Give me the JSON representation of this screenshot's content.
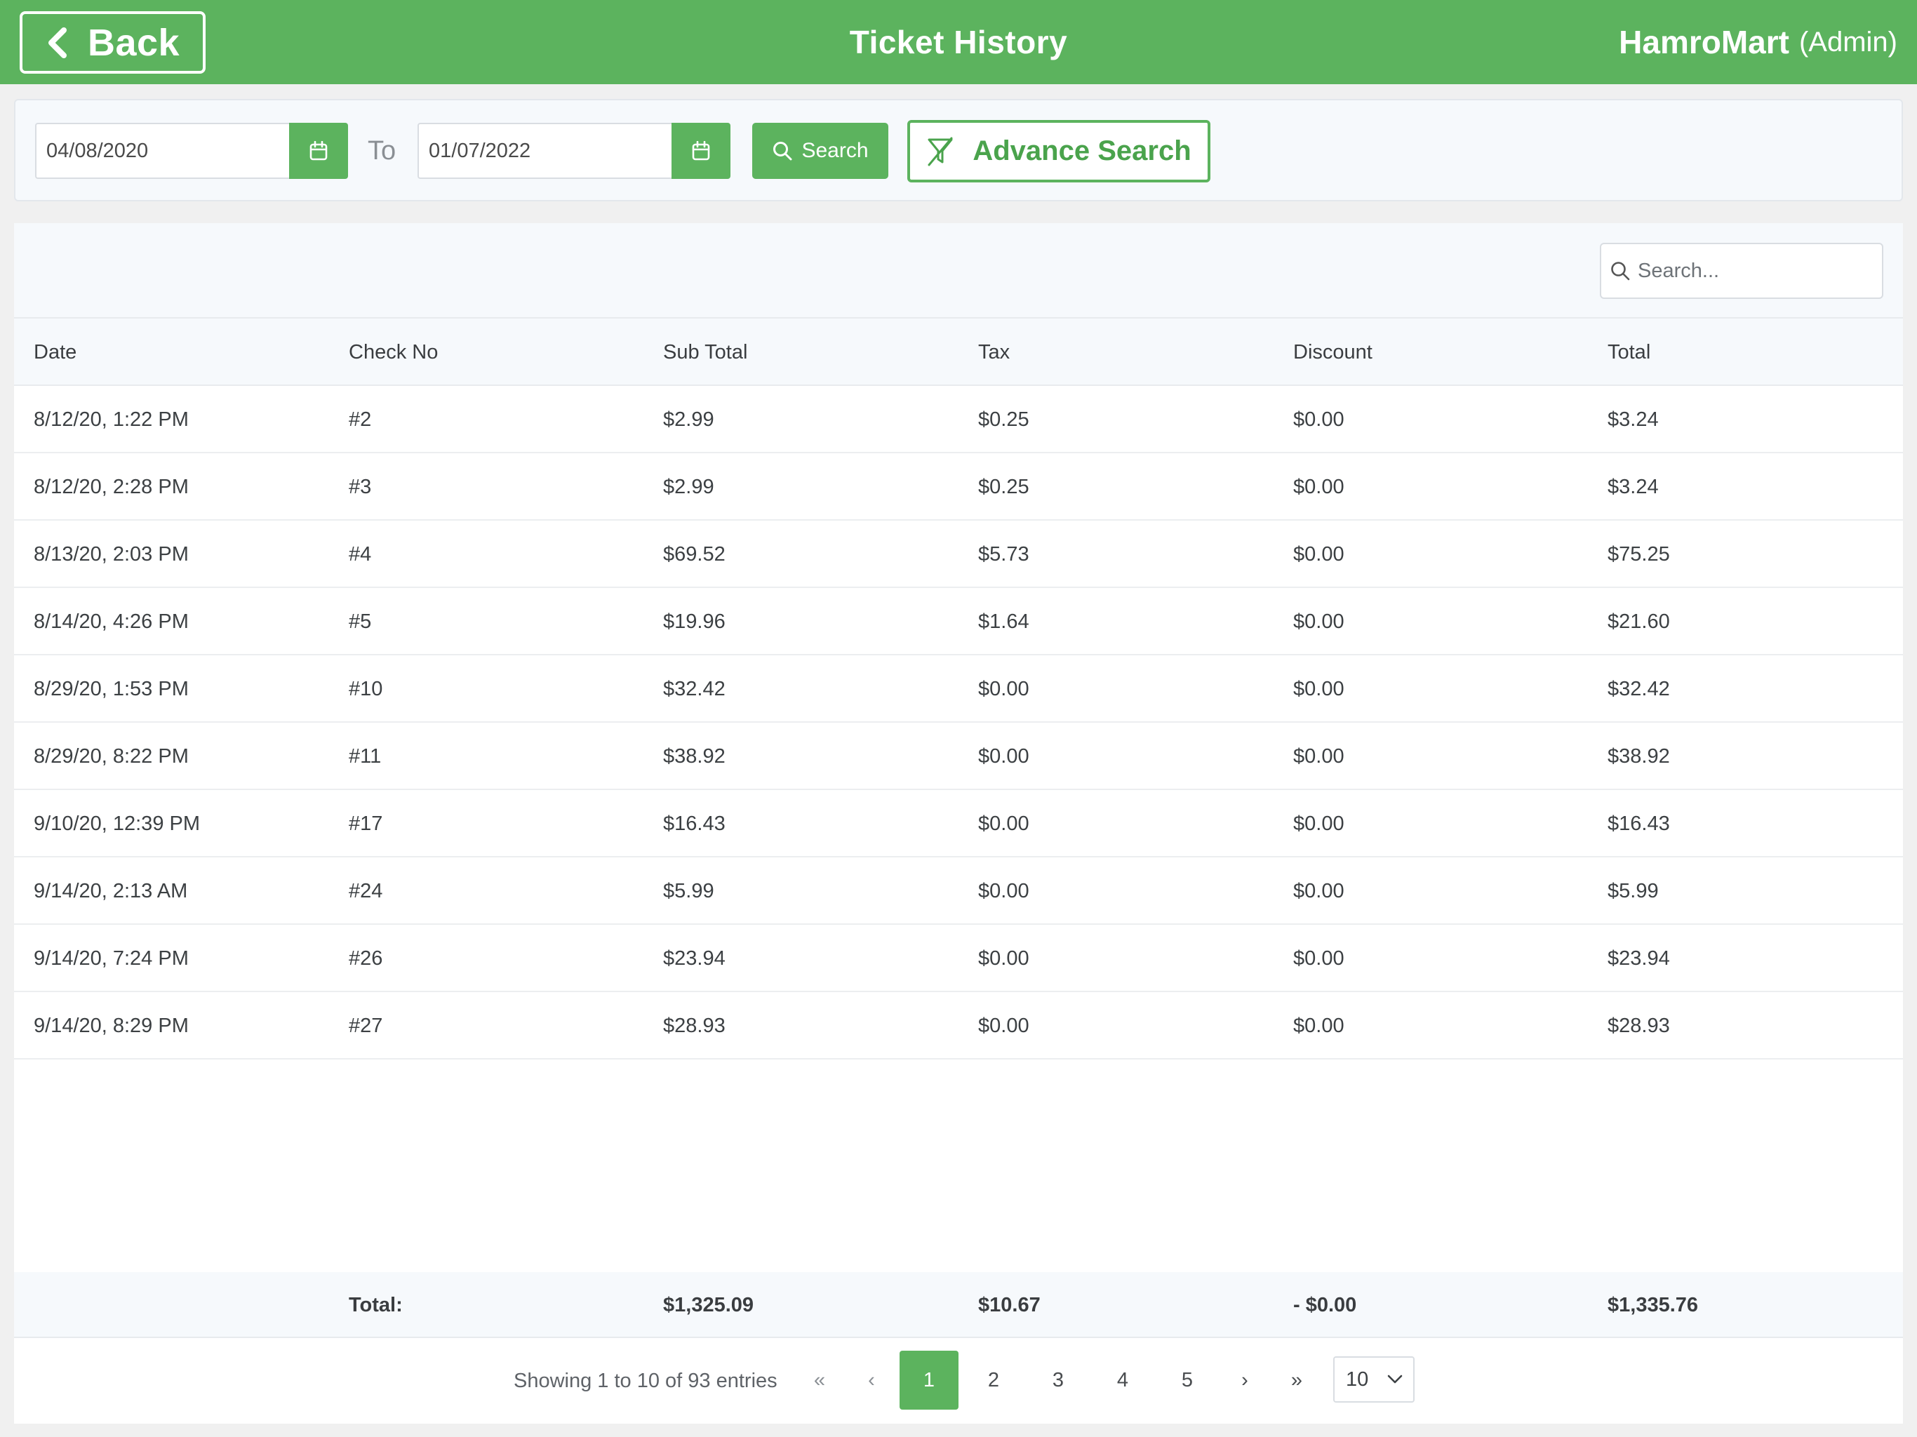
{
  "header": {
    "back_label": "Back",
    "title": "Ticket History",
    "brand_name": "HamroMart",
    "brand_role": "(Admin)"
  },
  "filters": {
    "from_date": "04/08/2020",
    "to_label": "To",
    "to_date": "01/07/2022",
    "search_label": "Search",
    "advance_search_label": "Advance Search"
  },
  "table": {
    "search_placeholder": "Search...",
    "columns": [
      "Date",
      "Check No",
      "Sub Total",
      "Tax",
      "Discount",
      "Total"
    ],
    "rows": [
      {
        "date": "8/12/20, 1:22 PM",
        "check": "#2",
        "subtotal": "$2.99",
        "tax": "$0.25",
        "discount": "$0.00",
        "total": "$3.24"
      },
      {
        "date": "8/12/20, 2:28 PM",
        "check": "#3",
        "subtotal": "$2.99",
        "tax": "$0.25",
        "discount": "$0.00",
        "total": "$3.24"
      },
      {
        "date": "8/13/20, 2:03 PM",
        "check": "#4",
        "subtotal": "$69.52",
        "tax": "$5.73",
        "discount": "$0.00",
        "total": "$75.25"
      },
      {
        "date": "8/14/20, 4:26 PM",
        "check": "#5",
        "subtotal": "$19.96",
        "tax": "$1.64",
        "discount": "$0.00",
        "total": "$21.60"
      },
      {
        "date": "8/29/20, 1:53 PM",
        "check": "#10",
        "subtotal": "$32.42",
        "tax": "$0.00",
        "discount": "$0.00",
        "total": "$32.42"
      },
      {
        "date": "8/29/20, 8:22 PM",
        "check": "#11",
        "subtotal": "$38.92",
        "tax": "$0.00",
        "discount": "$0.00",
        "total": "$38.92"
      },
      {
        "date": "9/10/20, 12:39 PM",
        "check": "#17",
        "subtotal": "$16.43",
        "tax": "$0.00",
        "discount": "$0.00",
        "total": "$16.43"
      },
      {
        "date": "9/14/20, 2:13 AM",
        "check": "#24",
        "subtotal": "$5.99",
        "tax": "$0.00",
        "discount": "$0.00",
        "total": "$5.99"
      },
      {
        "date": "9/14/20, 7:24 PM",
        "check": "#26",
        "subtotal": "$23.94",
        "tax": "$0.00",
        "discount": "$0.00",
        "total": "$23.94"
      },
      {
        "date": "9/14/20, 8:29 PM",
        "check": "#27",
        "subtotal": "$28.93",
        "tax": "$0.00",
        "discount": "$0.00",
        "total": "$28.93"
      }
    ],
    "footer": {
      "label": "Total:",
      "subtotal": "$1,325.09",
      "tax": "$10.67",
      "discount": "- $0.00",
      "total": "$1,335.76"
    }
  },
  "pagination": {
    "showing_text": "Showing 1 to 10 of 93 entries",
    "first_glyph": "«",
    "prev_glyph": "‹",
    "next_glyph": "›",
    "last_glyph": "»",
    "pages": [
      "1",
      "2",
      "3",
      "4",
      "5"
    ],
    "current_page": "1",
    "page_size": "10"
  },
  "colors": {
    "brand_green": "#5cb35e",
    "header_text": "#ffffff",
    "panel_bg": "#f6f9fc"
  },
  "icons": {
    "back": "chevron-left-icon",
    "calendar": "calendar-icon",
    "search": "search-icon",
    "filter": "filter-off-icon",
    "dropdown": "chevron-down-icon"
  }
}
